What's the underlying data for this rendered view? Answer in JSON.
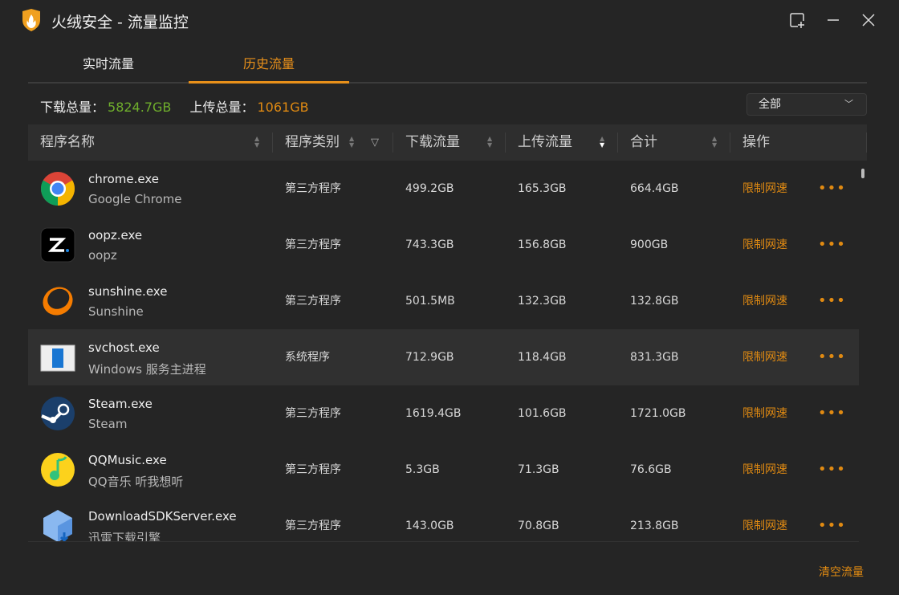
{
  "window": {
    "title": "火绒安全 - 流量监控",
    "accent": "#e8901a"
  },
  "tabs": [
    {
      "label": "实时流量"
    },
    {
      "label": "历史流量",
      "active": true
    }
  ],
  "summary": {
    "download_label": "下载总量：",
    "download_value": "5824.7GB",
    "upload_label": "上传总量：",
    "upload_value": "1061GB"
  },
  "filter": {
    "selected": "全部"
  },
  "columns": [
    "程序名称",
    "程序类别",
    "下载流量",
    "上传流量",
    "合计",
    "操作"
  ],
  "sort": {
    "column": "上传流量",
    "direction": "descending"
  },
  "rows": [
    {
      "exe": "chrome.exe",
      "desc": "Google Chrome",
      "type": "第三方程序",
      "download": "499.2GB",
      "upload": "165.3GB",
      "total": "664.4GB",
      "icon": "chrome-icon"
    },
    {
      "exe": "oopz.exe",
      "desc": "oopz",
      "type": "第三方程序",
      "download": "743.3GB",
      "upload": "156.8GB",
      "total": "900GB",
      "icon": "oopz-icon"
    },
    {
      "exe": "sunshine.exe",
      "desc": "Sunshine",
      "type": "第三方程序",
      "download": "501.5MB",
      "upload": "132.3GB",
      "total": "132.8GB",
      "icon": "sunshine-icon"
    },
    {
      "exe": "svchost.exe",
      "desc": "Windows 服务主进程",
      "type": "系统程序",
      "download": "712.9GB",
      "upload": "118.4GB",
      "total": "831.3GB",
      "icon": "svchost-icon"
    },
    {
      "exe": "Steam.exe",
      "desc": "Steam",
      "type": "第三方程序",
      "download": "1619.4GB",
      "upload": "101.6GB",
      "total": "1721.0GB",
      "icon": "steam-icon"
    },
    {
      "exe": "QQMusic.exe",
      "desc": "QQ音乐 听我想听",
      "type": "第三方程序",
      "download": "5.3GB",
      "upload": "71.3GB",
      "total": "76.6GB",
      "icon": "qqmusic-icon"
    },
    {
      "exe": "DownloadSDKServer.exe",
      "desc": "迅雷下载引擎",
      "type": "第三方程序",
      "download": "143.0GB",
      "upload": "70.8GB",
      "total": "213.8GB",
      "icon": "xunlei-icon"
    }
  ],
  "actions": {
    "limit": "限制网速",
    "more": "•••",
    "clear": "清空流量"
  }
}
